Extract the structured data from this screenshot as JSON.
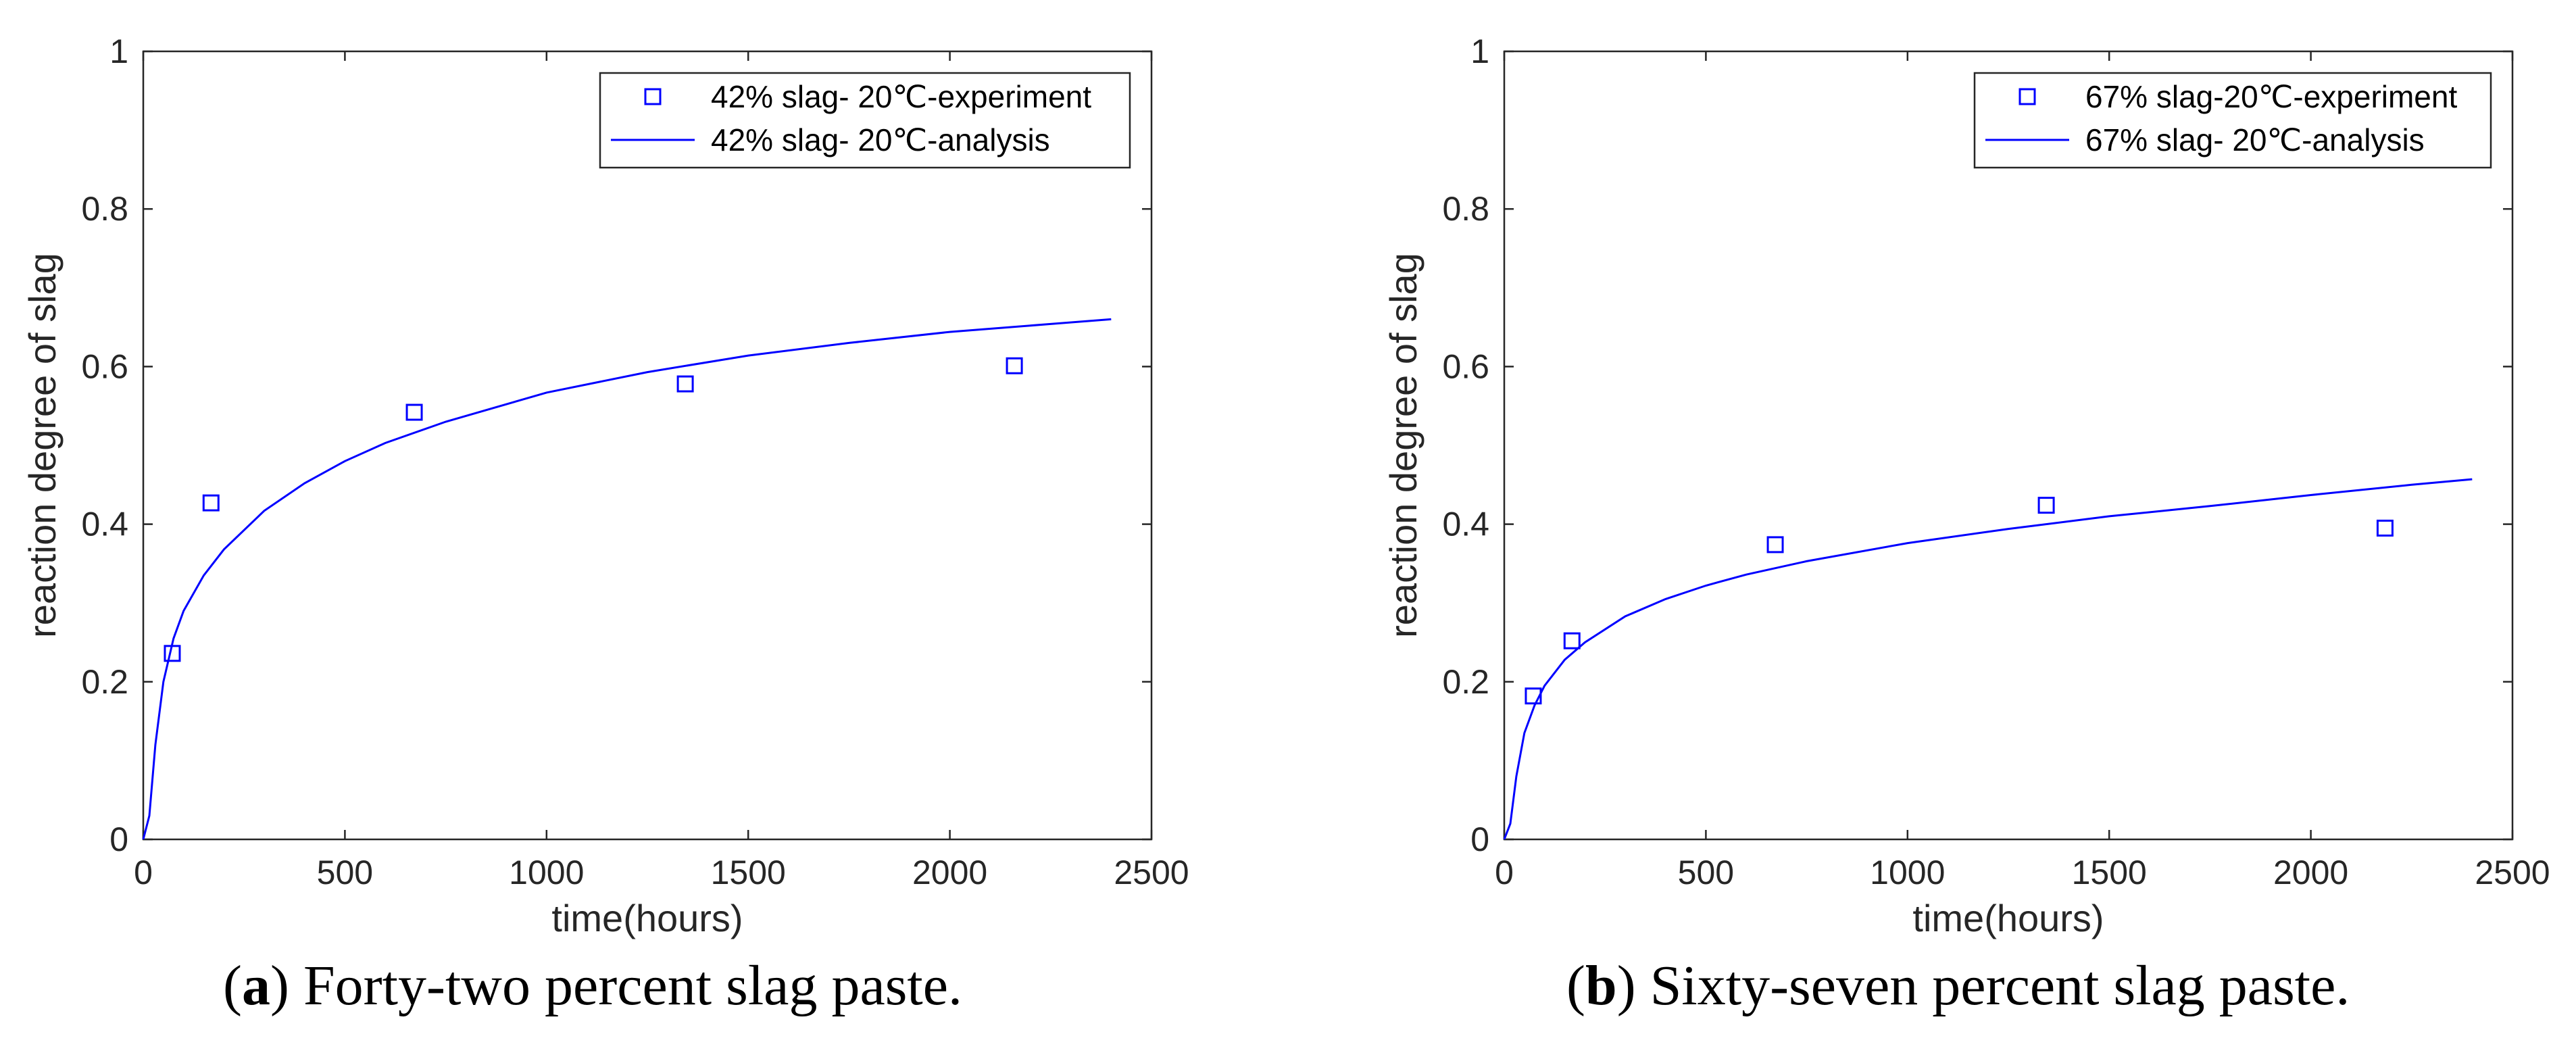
{
  "figure": {
    "captions": [
      {
        "letter": "a",
        "text": "Forty-two percent slag paste."
      },
      {
        "letter": "b",
        "text": "Sixty-seven percent slag paste."
      }
    ]
  },
  "style": {
    "series_color": "#0000ff",
    "axis_color": "#262626"
  },
  "chart_data": [
    {
      "type": "scatter+line",
      "xlabel": "time(hours)",
      "ylabel": "reaction degree of slag",
      "xlim": [
        0,
        2500
      ],
      "ylim": [
        0,
        1
      ],
      "xticks": [
        0,
        500,
        1000,
        1500,
        2000,
        2500
      ],
      "yticks": [
        0,
        0.2,
        0.4,
        0.6,
        0.8,
        1
      ],
      "ytick_labels": [
        "0",
        "0.2",
        "0.4",
        "0.6",
        "0.8",
        "1"
      ],
      "legend_position": "top-right",
      "experiment": {
        "name": "42% slag- 20℃-experiment",
        "x": [
          72,
          168,
          672,
          1344,
          2160
        ],
        "y": [
          0.236,
          0.427,
          0.542,
          0.578,
          0.601
        ]
      },
      "analysis": {
        "name": "42% slag- 20℃-analysis",
        "x": [
          0,
          15,
          30,
          50,
          75,
          100,
          150,
          200,
          300,
          400,
          500,
          600,
          750,
          1000,
          1250,
          1500,
          1750,
          2000,
          2250,
          2400
        ],
        "y": [
          0,
          0.03,
          0.12,
          0.2,
          0.255,
          0.29,
          0.335,
          0.368,
          0.417,
          0.452,
          0.48,
          0.503,
          0.53,
          0.567,
          0.593,
          0.614,
          0.63,
          0.644,
          0.654,
          0.66
        ]
      }
    },
    {
      "type": "scatter+line",
      "xlabel": "time(hours)",
      "ylabel": "reaction degree of slag",
      "xlim": [
        0,
        2500
      ],
      "ylim": [
        0,
        1
      ],
      "xticks": [
        0,
        500,
        1000,
        1500,
        2000,
        2500
      ],
      "yticks": [
        0,
        0.2,
        0.4,
        0.6,
        0.8,
        1
      ],
      "ytick_labels": [
        "0",
        "0.2",
        "0.4",
        "0.6",
        "0.8",
        "1"
      ],
      "legend_position": "top-right",
      "experiment": {
        "name": "67% slag-20℃-experiment",
        "x": [
          72,
          168,
          672,
          1344,
          2184
        ],
        "y": [
          0.182,
          0.252,
          0.374,
          0.424,
          0.395
        ]
      },
      "analysis": {
        "name": "67% slag- 20℃-analysis",
        "x": [
          0,
          15,
          30,
          50,
          75,
          100,
          150,
          200,
          300,
          400,
          500,
          600,
          750,
          1000,
          1250,
          1500,
          1750,
          2000,
          2250,
          2400
        ],
        "y": [
          0,
          0.02,
          0.08,
          0.135,
          0.17,
          0.195,
          0.228,
          0.25,
          0.283,
          0.305,
          0.322,
          0.336,
          0.353,
          0.376,
          0.394,
          0.41,
          0.423,
          0.437,
          0.45,
          0.457
        ]
      }
    }
  ]
}
